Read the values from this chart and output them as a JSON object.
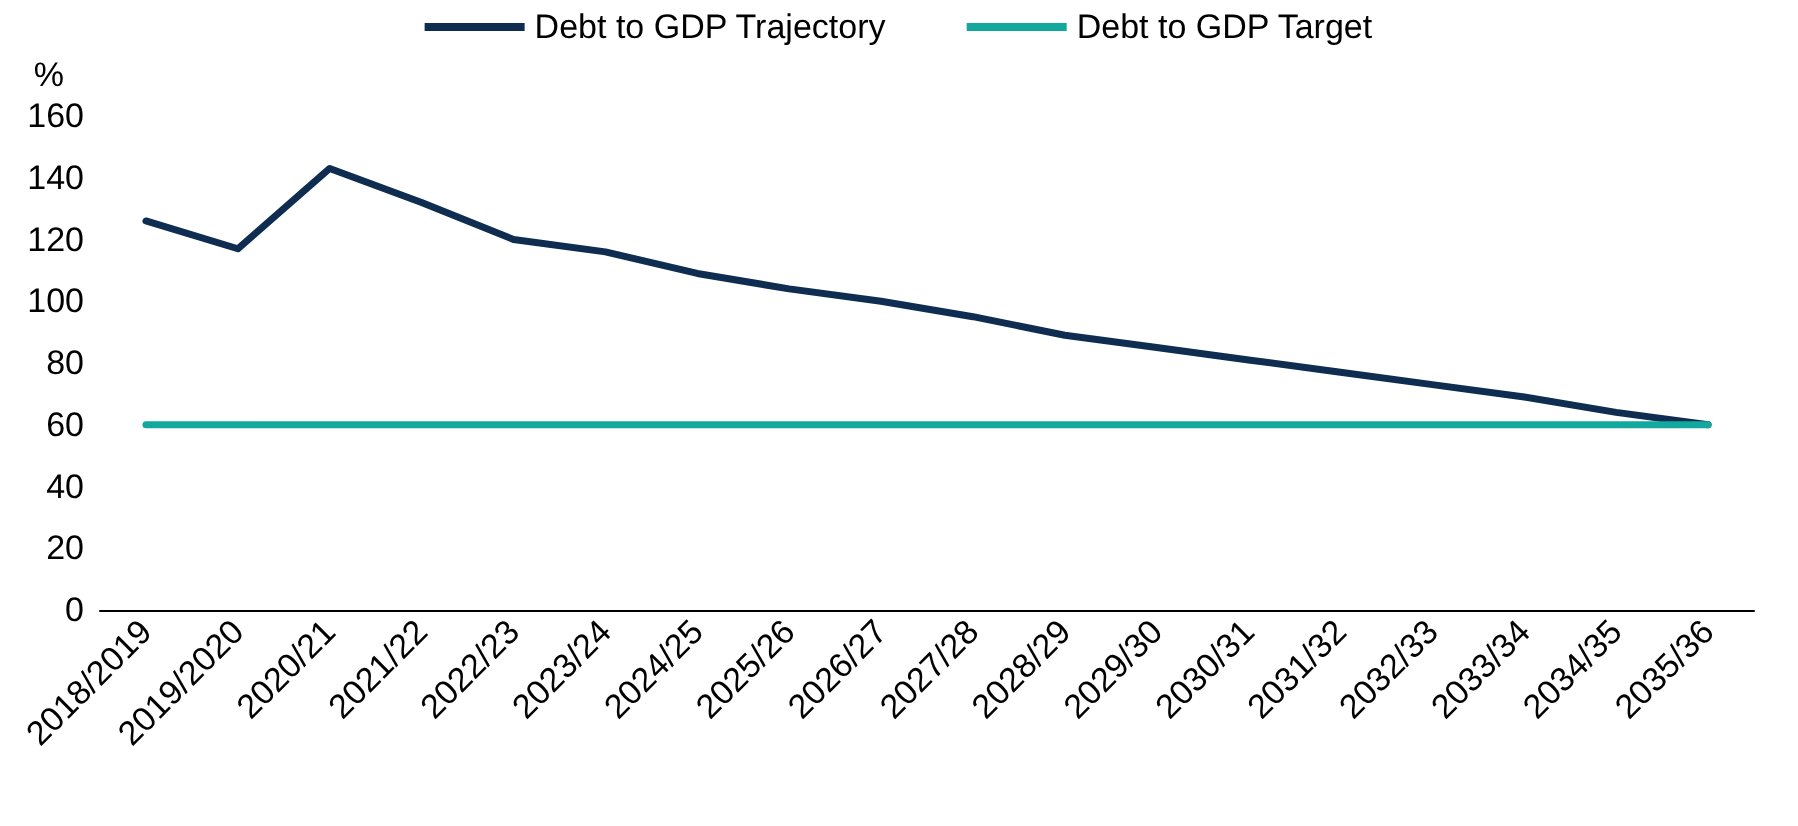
{
  "chart_data": {
    "type": "line",
    "ylabel": "%",
    "categories": [
      "2018/2019",
      "2019/2020",
      "2020/21",
      "2021/22",
      "2022/23",
      "2023/24",
      "2024/25",
      "2025/26",
      "2026/27",
      "2027/28",
      "2028/29",
      "2029/30",
      "2030/31",
      "2031/32",
      "2032/33",
      "2033/34",
      "2034/35",
      "2035/36"
    ],
    "series": [
      {
        "name": "Debt to GDP Trajectory",
        "color": "#0e2d50",
        "values": [
          126,
          117,
          143,
          132,
          120,
          116,
          109,
          104,
          100,
          95,
          89,
          85,
          81,
          77,
          73,
          69,
          64,
          60
        ]
      },
      {
        "name": "Debt to GDP Target",
        "color": "#13a89e",
        "values": [
          60,
          60,
          60,
          60,
          60,
          60,
          60,
          60,
          60,
          60,
          60,
          60,
          60,
          60,
          60,
          60,
          60,
          60
        ]
      }
    ],
    "ylim": [
      0,
      160
    ],
    "yticks": [
      0,
      20,
      40,
      60,
      80,
      100,
      120,
      140,
      160
    ],
    "grid": false,
    "legend": "top",
    "marker": "none",
    "line_style": "solid"
  }
}
